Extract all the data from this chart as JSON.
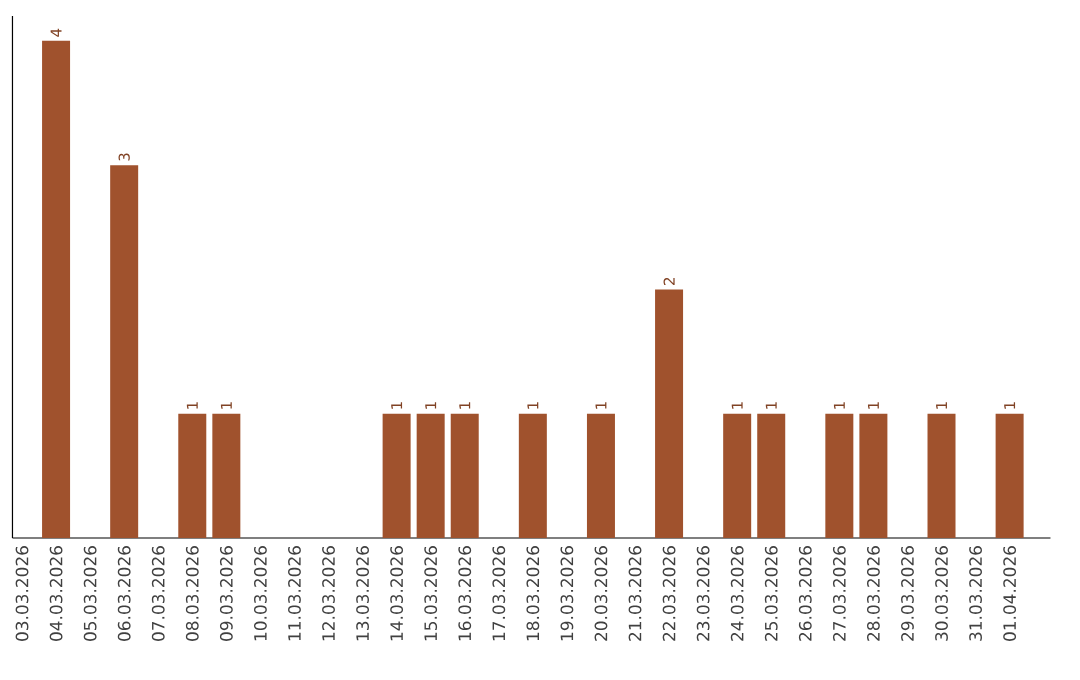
{
  "chart_data": {
    "type": "bar",
    "categories": [
      "03.03.2026",
      "04.03.2026",
      "05.03.2026",
      "06.03.2026",
      "07.03.2026",
      "08.03.2026",
      "09.03.2026",
      "10.03.2026",
      "11.03.2026",
      "12.03.2026",
      "13.03.2026",
      "14.03.2026",
      "15.03.2026",
      "16.03.2026",
      "17.03.2026",
      "18.03.2026",
      "19.03.2026",
      "20.03.2026",
      "21.03.2026",
      "22.03.2026",
      "23.03.2026",
      "24.03.2026",
      "25.03.2026",
      "26.03.2026",
      "27.03.2026",
      "28.03.2026",
      "29.03.2026",
      "30.03.2026",
      "31.03.2026",
      "01.04.2026"
    ],
    "values": [
      0,
      4,
      0,
      3,
      0,
      1,
      1,
      0,
      0,
      0,
      0,
      1,
      1,
      1,
      0,
      1,
      0,
      1,
      0,
      2,
      0,
      1,
      1,
      0,
      1,
      1,
      0,
      1,
      0,
      1
    ],
    "value_labels": [
      null,
      "4",
      null,
      "3",
      null,
      "1",
      "1",
      null,
      null,
      null,
      null,
      "1",
      "1",
      "1",
      null,
      "1",
      null,
      "1",
      null,
      "2",
      null,
      "1",
      "1",
      null,
      "1",
      "1",
      null,
      "1",
      null,
      "1"
    ],
    "color": "#a0522d"
  }
}
